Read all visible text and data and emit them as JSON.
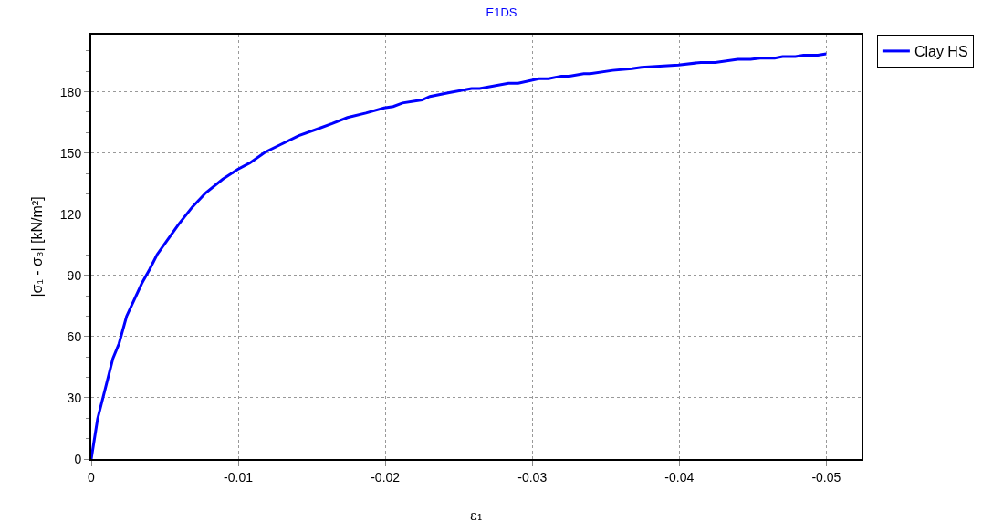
{
  "chart_data": {
    "type": "line",
    "title": "E1DS",
    "xlabel": "ε₁",
    "ylabel": "|σ₁ - σ₃| [kN/m²]",
    "xlim": [
      0,
      -0.0524
    ],
    "ylim": [
      0,
      208
    ],
    "xticks": [
      0,
      -0.01,
      -0.02,
      -0.03,
      -0.04,
      -0.05
    ],
    "yticks": [
      0,
      30,
      60,
      90,
      120,
      150,
      180
    ],
    "grid": true,
    "legend": "top right",
    "line_style": "solid",
    "marker": "none",
    "series": [
      {
        "name": "Clay HS",
        "color": "#0000ff",
        "x": [
          0,
          -0.00043,
          -0.00095,
          -0.00147,
          -0.00189,
          -0.0024,
          -0.00344,
          -0.00396,
          -0.00448,
          -0.0052,
          -0.00593,
          -0.00686,
          -0.00779,
          -0.00893,
          -0.00997,
          -0.0108,
          -0.01183,
          -0.01287,
          -0.01412,
          -0.01536,
          -0.01639,
          -0.01743,
          -0.01868,
          -0.01992,
          -0.02054,
          -0.02117,
          -0.0225,
          -0.02304,
          -0.02435,
          -0.02587,
          -0.02642,
          -0.02838,
          -0.02904,
          -0.03045,
          -0.0311,
          -0.03198,
          -0.03252,
          -0.0335,
          -0.03394,
          -0.03547,
          -0.03678,
          -0.03743,
          -0.03918,
          -0.03994,
          -0.04147,
          -0.04245,
          -0.04398,
          -0.04485,
          -0.0455,
          -0.04649,
          -0.04703,
          -0.0479,
          -0.04845,
          -0.04943,
          -0.05
        ],
        "values": [
          0,
          19.7,
          34.4,
          49.2,
          56.6,
          69.9,
          86.1,
          92.8,
          100.2,
          107.5,
          114.9,
          123.4,
          130.5,
          137.1,
          142.0,
          145.2,
          150.4,
          154.1,
          158.5,
          161.7,
          164.4,
          167.4,
          169.6,
          172.1,
          172.8,
          174.5,
          176.0,
          177.7,
          179.6,
          181.6,
          181.6,
          184.2,
          184.2,
          186.4,
          186.4,
          187.7,
          187.7,
          188.9,
          188.9,
          190.5,
          191.3,
          192.0,
          192.8,
          193.1,
          194.4,
          194.4,
          195.9,
          195.9,
          196.5,
          196.5,
          197.3,
          197.3,
          197.9,
          197.9,
          198.6
        ]
      }
    ]
  }
}
